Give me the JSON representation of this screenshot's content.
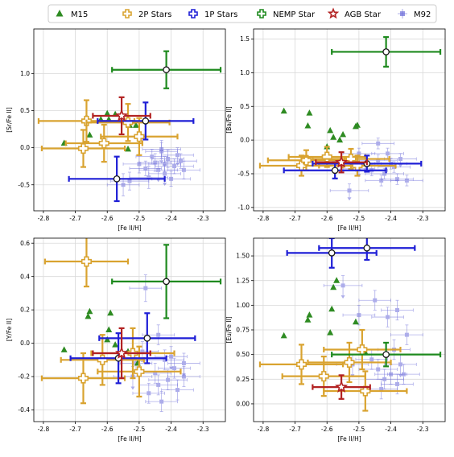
{
  "legend": {
    "placement": "top-center",
    "entries": [
      {
        "label": "M15",
        "color": "#2e8b22",
        "marker": "triangle"
      },
      {
        "label": "2P Stars",
        "color": "#d9a330",
        "marker": "plus-open"
      },
      {
        "label": "1P Stars",
        "color": "#1f1fd6",
        "marker": "plus-open"
      },
      {
        "label": "NEMP Star",
        "color": "#1e8a1e",
        "marker": "plus-open"
      },
      {
        "label": "AGB Star",
        "color": "#b22222",
        "marker": "star-open"
      },
      {
        "label": "M92",
        "color": "#6b6bd9",
        "marker": "square"
      }
    ]
  },
  "chart_data": [
    {
      "type": "scatter",
      "xlabel": "[Fe II/H]",
      "ylabel": "[Sr/Fe II]",
      "xlim": [
        -2.83,
        -2.23
      ],
      "ylim": [
        -0.85,
        1.6
      ],
      "xticks": [
        "-2.8",
        "-2.7",
        "-2.6",
        "-2.5",
        "-2.4",
        "-2.3"
      ],
      "xtick_values": [
        -2.8,
        -2.7,
        -2.6,
        -2.5,
        -2.4,
        -2.3
      ],
      "yticks": [
        "-0.5",
        "0.0",
        "0.5",
        "1.0"
      ],
      "ytick_values": [
        -0.5,
        0.0,
        0.5,
        1.0
      ],
      "grid": true,
      "M15": [
        [
          -2.735,
          0.06
        ],
        [
          -2.665,
          0.41
        ],
        [
          -2.655,
          0.17
        ],
        [
          -2.62,
          0.38
        ],
        [
          -2.6,
          0.46
        ],
        [
          -2.595,
          0.38
        ],
        [
          -2.575,
          0.45
        ],
        [
          -2.535,
          -0.02
        ],
        [
          -2.53,
          0.3
        ],
        [
          -2.51,
          0.3
        ]
      ],
      "M92": [
        {
          "x": -2.43,
          "y": -0.02,
          "xe": 0.06,
          "ye": 0.12
        },
        {
          "x": -2.41,
          "y": -0.15,
          "xe": 0.05,
          "ye": 0.12
        },
        {
          "x": -2.38,
          "y": -0.1,
          "xe": 0.05,
          "ye": 0.1
        },
        {
          "x": -2.45,
          "y": -0.2,
          "xe": 0.05,
          "ye": 0.12
        },
        {
          "x": -2.39,
          "y": -0.25,
          "xe": 0.06,
          "ye": 0.1
        },
        {
          "x": -2.36,
          "y": -0.3,
          "xe": 0.05,
          "ye": 0.12
        },
        {
          "x": -2.48,
          "y": -0.28,
          "xe": 0.05,
          "ye": 0.1
        },
        {
          "x": -2.42,
          "y": -0.35,
          "xe": 0.05,
          "ye": 0.12
        },
        {
          "x": -2.4,
          "y": -0.42,
          "xe": 0.06,
          "ye": 0.1
        },
        {
          "x": -2.53,
          "y": -0.45,
          "xe": 0.06,
          "ye": 0.12
        },
        {
          "x": -2.55,
          "y": -0.5,
          "xe": 0.05,
          "ye": 0.15
        },
        {
          "x": -2.46,
          "y": -0.12,
          "xe": 0.05,
          "ye": 0.1
        },
        {
          "x": -2.43,
          "y": -0.05,
          "xe": 0.05,
          "ye": 0.12
        },
        {
          "x": -2.37,
          "y": -0.18,
          "xe": 0.05,
          "ye": 0.1
        },
        {
          "x": -2.5,
          "y": -0.22,
          "xe": 0.05,
          "ye": 0.12
        },
        {
          "x": -2.47,
          "y": -0.4,
          "xe": 0.06,
          "ye": 0.15
        },
        {
          "x": -2.42,
          "y": -0.22,
          "xe": 0.05,
          "ye": 0.1
        },
        {
          "x": -2.44,
          "y": -0.3,
          "xe": 0.06,
          "ye": 0.12
        }
      ],
      "stars": [
        {
          "group": "2P Stars",
          "x": -2.665,
          "y": 0.36,
          "xe": 0.15,
          "ye": 0.28
        },
        {
          "group": "2P Stars",
          "x": -2.675,
          "y": -0.01,
          "xe": 0.13,
          "ye": 0.25
        },
        {
          "group": "2P Stars",
          "x": -2.61,
          "y": 0.06,
          "xe": 0.12,
          "ye": 0.25
        },
        {
          "group": "2P Stars",
          "x": -2.535,
          "y": 0.34,
          "xe": 0.13,
          "ye": 0.25
        },
        {
          "group": "2P Stars",
          "x": -2.5,
          "y": 0.15,
          "xe": 0.12,
          "ye": 0.25
        },
        {
          "group": "1P Stars",
          "x": -2.57,
          "y": -0.42,
          "xe": 0.15,
          "ye": 0.3
        },
        {
          "group": "1P Stars",
          "x": -2.48,
          "y": 0.36,
          "xe": 0.15,
          "ye": 0.25
        },
        {
          "group": "NEMP Star",
          "x": -2.415,
          "y": 1.05,
          "xe": 0.17,
          "ye": 0.25
        },
        {
          "group": "AGB Star",
          "x": -2.555,
          "y": 0.43,
          "xe": 0.09,
          "ye": 0.25
        }
      ]
    },
    {
      "type": "scatter",
      "xlabel": "[Fe II/H]",
      "ylabel": "[Ba/Fe II]",
      "xlim": [
        -2.83,
        -2.23
      ],
      "ylim": [
        -1.05,
        1.65
      ],
      "xticks": [
        "-2.8",
        "-2.7",
        "-2.6",
        "-2.5",
        "-2.4",
        "-2.3"
      ],
      "xtick_values": [
        -2.8,
        -2.7,
        -2.6,
        -2.5,
        -2.4,
        -2.3
      ],
      "yticks": [
        "-1.0",
        "-0.5",
        "0.0",
        "0.5",
        "1.0",
        "1.5"
      ],
      "ytick_values": [
        -1.0,
        -0.5,
        0.0,
        0.5,
        1.0,
        1.5
      ],
      "grid": true,
      "M15": [
        [
          -2.735,
          0.43
        ],
        [
          -2.66,
          0.21
        ],
        [
          -2.655,
          0.4
        ],
        [
          -2.6,
          -0.1
        ],
        [
          -2.59,
          0.14
        ],
        [
          -2.58,
          0.04
        ],
        [
          -2.56,
          0.0
        ],
        [
          -2.55,
          0.08
        ],
        [
          -2.51,
          0.2
        ],
        [
          -2.505,
          0.22
        ]
      ],
      "M92": [
        {
          "x": -2.44,
          "y": -0.3,
          "xe": 0.06,
          "ye": 0.08
        },
        {
          "x": -2.4,
          "y": -0.35,
          "xe": 0.05,
          "ye": 0.08
        },
        {
          "x": -2.37,
          "y": -0.28,
          "xe": 0.05,
          "ye": 0.08
        },
        {
          "x": -2.46,
          "y": -0.45,
          "xe": 0.05,
          "ye": 0.08
        },
        {
          "x": -2.42,
          "y": -0.5,
          "xe": 0.06,
          "ye": 0.08
        },
        {
          "x": -2.38,
          "y": -0.58,
          "xe": 0.05,
          "ye": 0.08
        },
        {
          "x": -2.5,
          "y": -0.2,
          "xe": 0.05,
          "ye": 0.08
        },
        {
          "x": -2.53,
          "y": -0.75,
          "xe": 0.06,
          "ye": 0.1
        },
        {
          "x": -2.48,
          "y": -0.35,
          "xe": 0.05,
          "ye": 0.08
        },
        {
          "x": -2.35,
          "y": -0.6,
          "xe": 0.05,
          "ye": 0.08
        },
        {
          "x": -2.41,
          "y": -0.2,
          "xe": 0.05,
          "ye": 0.08
        },
        {
          "x": -2.44,
          "y": -0.05,
          "xe": 0.05,
          "ye": 0.08
        },
        {
          "x": -2.5,
          "y": -0.42,
          "xe": 0.05,
          "ye": 0.08
        },
        {
          "x": -2.39,
          "y": -0.4,
          "xe": 0.05,
          "ye": 0.08
        },
        {
          "x": -2.43,
          "y": -0.6,
          "xe": 0.05,
          "ye": 0.08
        }
      ],
      "stars": [
        {
          "group": "2P Stars",
          "x": -2.68,
          "y": -0.38,
          "xe": 0.13,
          "ye": 0.15
        },
        {
          "group": "2P Stars",
          "x": -2.665,
          "y": -0.3,
          "xe": 0.12,
          "ye": 0.15
        },
        {
          "group": "2P Stars",
          "x": -2.6,
          "y": -0.25,
          "xe": 0.12,
          "ye": 0.15
        },
        {
          "group": "2P Stars",
          "x": -2.525,
          "y": -0.28,
          "xe": 0.12,
          "ye": 0.15
        },
        {
          "group": "2P Stars",
          "x": -2.505,
          "y": -0.38,
          "xe": 0.12,
          "ye": 0.15
        },
        {
          "group": "1P Stars",
          "x": -2.575,
          "y": -0.45,
          "xe": 0.16,
          "ye": 0.12
        },
        {
          "group": "1P Stars",
          "x": -2.475,
          "y": -0.35,
          "xe": 0.17,
          "ye": 0.12
        },
        {
          "group": "NEMP Star",
          "x": -2.415,
          "y": 1.31,
          "xe": 0.17,
          "ye": 0.22
        },
        {
          "group": "AGB Star",
          "x": -2.555,
          "y": -0.33,
          "xe": 0.08,
          "ye": 0.15
        }
      ]
    },
    {
      "type": "scatter",
      "xlabel": "[Fe II/H]",
      "ylabel": "[Y/Fe II]",
      "xlim": [
        -2.83,
        -2.23
      ],
      "ylim": [
        -0.47,
        0.63
      ],
      "xticks": [
        "-2.8",
        "-2.7",
        "-2.6",
        "-2.5",
        "-2.4",
        "-2.3"
      ],
      "xtick_values": [
        -2.8,
        -2.7,
        -2.6,
        -2.5,
        -2.4,
        -2.3
      ],
      "yticks": [
        "-0.4",
        "-0.2",
        "0.0",
        "0.2",
        "0.4",
        "0.6"
      ],
      "ytick_values": [
        -0.4,
        -0.2,
        0.0,
        0.2,
        0.4,
        0.6
      ],
      "grid": true,
      "M15": [
        [
          -2.735,
          -0.04
        ],
        [
          -2.66,
          0.16
        ],
        [
          -2.655,
          0.19
        ],
        [
          -2.6,
          0.02
        ],
        [
          -2.595,
          0.08
        ],
        [
          -2.59,
          0.18
        ],
        [
          -2.575,
          -0.01
        ],
        [
          -2.535,
          -0.05
        ],
        [
          -2.52,
          -0.08
        ],
        [
          -2.505,
          -0.12
        ]
      ],
      "M92": [
        {
          "x": -2.42,
          "y": -0.1,
          "xe": 0.06,
          "ye": 0.06
        },
        {
          "x": -2.39,
          "y": -0.15,
          "xe": 0.05,
          "ye": 0.06
        },
        {
          "x": -2.36,
          "y": -0.12,
          "xe": 0.05,
          "ye": 0.06
        },
        {
          "x": -2.45,
          "y": -0.18,
          "xe": 0.05,
          "ye": 0.06
        },
        {
          "x": -2.41,
          "y": -0.22,
          "xe": 0.06,
          "ye": 0.06
        },
        {
          "x": -2.38,
          "y": -0.28,
          "xe": 0.05,
          "ye": 0.06
        },
        {
          "x": -2.49,
          "y": -0.05,
          "xe": 0.05,
          "ye": 0.06
        },
        {
          "x": -2.52,
          "y": -0.2,
          "xe": 0.06,
          "ye": 0.06
        },
        {
          "x": -2.47,
          "y": -0.3,
          "xe": 0.05,
          "ye": 0.06
        },
        {
          "x": -2.44,
          "y": 0.05,
          "xe": 0.05,
          "ye": 0.06
        },
        {
          "x": -2.48,
          "y": 0.33,
          "xe": 0.05,
          "ye": 0.08
        },
        {
          "x": -2.43,
          "y": -0.35,
          "xe": 0.05,
          "ye": 0.06
        },
        {
          "x": -2.4,
          "y": -0.08,
          "xe": 0.05,
          "ye": 0.06
        },
        {
          "x": -2.36,
          "y": -0.2,
          "xe": 0.05,
          "ye": 0.06
        },
        {
          "x": -2.51,
          "y": -0.12,
          "xe": 0.05,
          "ye": 0.06
        },
        {
          "x": -2.44,
          "y": -0.25,
          "xe": 0.06,
          "ye": 0.06
        }
      ],
      "stars": [
        {
          "group": "2P Stars",
          "x": -2.665,
          "y": 0.49,
          "xe": 0.13,
          "ye": 0.15
        },
        {
          "group": "2P Stars",
          "x": -2.675,
          "y": -0.21,
          "xe": 0.13,
          "ye": 0.15
        },
        {
          "group": "2P Stars",
          "x": -2.615,
          "y": -0.1,
          "xe": 0.13,
          "ye": 0.15
        },
        {
          "group": "2P Stars",
          "x": -2.52,
          "y": -0.06,
          "xe": 0.13,
          "ye": 0.15
        },
        {
          "group": "2P Stars",
          "x": -2.5,
          "y": -0.17,
          "xe": 0.13,
          "ye": 0.15
        },
        {
          "group": "1P Stars",
          "x": -2.565,
          "y": -0.09,
          "xe": 0.15,
          "ye": 0.15
        },
        {
          "group": "1P Stars",
          "x": -2.475,
          "y": 0.03,
          "xe": 0.15,
          "ye": 0.15
        },
        {
          "group": "NEMP Star",
          "x": -2.415,
          "y": 0.37,
          "xe": 0.17,
          "ye": 0.22
        },
        {
          "group": "AGB Star",
          "x": -2.555,
          "y": -0.06,
          "xe": 0.09,
          "ye": 0.15
        }
      ]
    },
    {
      "type": "scatter",
      "xlabel": "[Fe II/H]",
      "ylabel": "[Eu/Fe II]",
      "xlim": [
        -2.83,
        -2.23
      ],
      "ylim": [
        -0.18,
        1.68
      ],
      "xticks": [
        "-2.8",
        "-2.7",
        "-2.6",
        "-2.5",
        "-2.4",
        "-2.3"
      ],
      "xtick_values": [
        -2.8,
        -2.7,
        -2.6,
        -2.5,
        -2.4,
        -2.3
      ],
      "yticks": [
        "0.00",
        "0.25",
        "0.50",
        "0.75",
        "1.00",
        "1.25",
        "1.50"
      ],
      "ytick_values": [
        0.0,
        0.25,
        0.5,
        0.75,
        1.0,
        1.25,
        1.5
      ],
      "grid": true,
      "M15": [
        [
          -2.735,
          0.69
        ],
        [
          -2.66,
          0.85
        ],
        [
          -2.655,
          0.9
        ],
        [
          -2.59,
          0.72
        ],
        [
          -2.585,
          0.96
        ],
        [
          -2.58,
          1.18
        ],
        [
          -2.57,
          1.25
        ],
        [
          -2.51,
          0.83
        ],
        [
          -2.48,
          0.52
        ]
      ],
      "M92": [
        {
          "x": -2.44,
          "y": 0.35,
          "xe": 0.06,
          "ye": 0.1
        },
        {
          "x": -2.4,
          "y": 0.3,
          "xe": 0.05,
          "ye": 0.1
        },
        {
          "x": -2.37,
          "y": 0.4,
          "xe": 0.05,
          "ye": 0.1
        },
        {
          "x": -2.46,
          "y": 0.45,
          "xe": 0.05,
          "ye": 0.1
        },
        {
          "x": -2.42,
          "y": 0.25,
          "xe": 0.06,
          "ye": 0.1
        },
        {
          "x": -2.38,
          "y": 0.2,
          "xe": 0.05,
          "ye": 0.1
        },
        {
          "x": -2.5,
          "y": 0.9,
          "xe": 0.05,
          "ye": 0.1
        },
        {
          "x": -2.55,
          "y": 1.2,
          "xe": 0.06,
          "ye": 0.1
        },
        {
          "x": -2.45,
          "y": 1.05,
          "xe": 0.05,
          "ye": 0.1
        },
        {
          "x": -2.41,
          "y": 0.88,
          "xe": 0.05,
          "ye": 0.1
        },
        {
          "x": -2.38,
          "y": 0.95,
          "xe": 0.05,
          "ye": 0.1
        },
        {
          "x": -2.35,
          "y": 0.7,
          "xe": 0.05,
          "ye": 0.1
        },
        {
          "x": -2.52,
          "y": 0.4,
          "xe": 0.05,
          "ye": 0.1
        },
        {
          "x": -2.43,
          "y": 0.15,
          "xe": 0.05,
          "ye": 0.1
        },
        {
          "x": -2.39,
          "y": 0.55,
          "xe": 0.05,
          "ye": 0.1
        },
        {
          "x": -2.36,
          "y": 0.3,
          "xe": 0.05,
          "ye": 0.1
        }
      ],
      "stars": [
        {
          "group": "2P Stars",
          "x": -2.68,
          "y": 0.4,
          "xe": 0.13,
          "ye": 0.2
        },
        {
          "group": "2P Stars",
          "x": -2.61,
          "y": 0.28,
          "xe": 0.13,
          "ye": 0.2
        },
        {
          "group": "2P Stars",
          "x": -2.53,
          "y": 0.42,
          "xe": 0.13,
          "ye": 0.2
        },
        {
          "group": "2P Stars",
          "x": -2.49,
          "y": 0.55,
          "xe": 0.12,
          "ye": 0.2
        },
        {
          "group": "2P Stars",
          "x": -2.48,
          "y": 0.13,
          "xe": 0.13,
          "ye": 0.2
        },
        {
          "group": "1P Stars",
          "x": -2.585,
          "y": 1.53,
          "xe": 0.14,
          "ye": 0.15
        },
        {
          "group": "1P Stars",
          "x": -2.475,
          "y": 1.58,
          "xe": 0.15,
          "ye": 0.12
        },
        {
          "group": "NEMP Star",
          "x": -2.415,
          "y": 0.5,
          "xe": 0.17,
          "ye": 0.12
        },
        {
          "group": "AGB Star",
          "x": -2.555,
          "y": 0.17,
          "xe": 0.09,
          "ye": 0.12
        }
      ]
    }
  ]
}
